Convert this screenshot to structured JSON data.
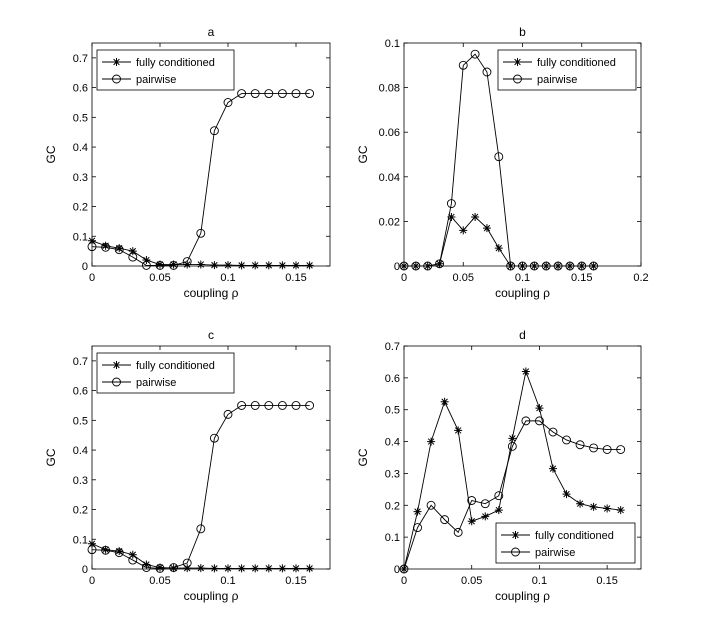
{
  "chart_data": [
    {
      "type": "line",
      "title": "a",
      "xlabel": "coupling ρ",
      "ylabel": "GC",
      "xlim": [
        0,
        0.175
      ],
      "ylim": [
        0,
        0.75
      ],
      "xticks": [
        0,
        0.05,
        0.1,
        0.15
      ],
      "xtick_labels": [
        "0",
        "0.05",
        "0.1",
        "0.15"
      ],
      "yticks": [
        0,
        0.1,
        0.2,
        0.3,
        0.4,
        0.5,
        0.6,
        0.7
      ],
      "ytick_labels": [
        "0",
        "0.1",
        "0.2",
        "0.3",
        "0.4",
        "0.5",
        "0.6",
        "0.7"
      ],
      "legend_position": "top-left",
      "x": [
        0,
        0.01,
        0.02,
        0.03,
        0.04,
        0.05,
        0.06,
        0.07,
        0.08,
        0.09,
        0.1,
        0.11,
        0.12,
        0.13,
        0.14,
        0.15,
        0.16
      ],
      "series": [
        {
          "name": "fully conditioned",
          "marker": "star",
          "values": [
            0.085,
            0.068,
            0.06,
            0.05,
            0.02,
            0.005,
            0.005,
            0.005,
            0.005,
            0.003,
            0.003,
            0.002,
            0.002,
            0.002,
            0.002,
            0.002,
            0.002
          ]
        },
        {
          "name": "pairwise",
          "marker": "circle",
          "values": [
            0.065,
            0.063,
            0.055,
            0.03,
            0.002,
            0.002,
            0.002,
            0.015,
            0.11,
            0.455,
            0.55,
            0.58,
            0.58,
            0.58,
            0.58,
            0.58,
            0.58
          ]
        }
      ]
    },
    {
      "type": "line",
      "title": "b",
      "xlabel": "coupling ρ",
      "ylabel": "GC",
      "xlim": [
        0,
        0.2
      ],
      "ylim": [
        0,
        0.1
      ],
      "xticks": [
        0,
        0.05,
        0.1,
        0.15,
        0.2
      ],
      "xtick_labels": [
        "0",
        "0.05",
        "0.1",
        "0.15",
        "0.2"
      ],
      "yticks": [
        0,
        0.02,
        0.04,
        0.06,
        0.08,
        0.1
      ],
      "ytick_labels": [
        "0",
        "0.02",
        "0.04",
        "0.06",
        "0.08",
        "0.1"
      ],
      "legend_position": "top-right",
      "x": [
        0,
        0.01,
        0.02,
        0.03,
        0.04,
        0.05,
        0.06,
        0.07,
        0.08,
        0.09,
        0.1,
        0.11,
        0.12,
        0.13,
        0.14,
        0.15,
        0.16
      ],
      "series": [
        {
          "name": "fully conditioned",
          "marker": "star",
          "values": [
            0,
            0,
            0,
            0.001,
            0.022,
            0.016,
            0.022,
            0.017,
            0.008,
            0,
            0,
            0,
            0,
            0,
            0,
            0,
            0
          ]
        },
        {
          "name": "pairwise",
          "marker": "circle",
          "values": [
            0,
            0,
            0,
            0.001,
            0.028,
            0.09,
            0.095,
            0.087,
            0.049,
            0,
            0,
            0,
            0,
            0,
            0,
            0,
            0
          ]
        }
      ]
    },
    {
      "type": "line",
      "title": "c",
      "xlabel": "coupling ρ",
      "ylabel": "GC",
      "xlim": [
        0,
        0.175
      ],
      "ylim": [
        0,
        0.75
      ],
      "xticks": [
        0,
        0.05,
        0.1,
        0.15
      ],
      "xtick_labels": [
        "0",
        "0.05",
        "0.1",
        "0.15"
      ],
      "yticks": [
        0,
        0.1,
        0.2,
        0.3,
        0.4,
        0.5,
        0.6,
        0.7
      ],
      "ytick_labels": [
        "0",
        "0.1",
        "0.2",
        "0.3",
        "0.4",
        "0.5",
        "0.6",
        "0.7"
      ],
      "legend_position": "top-left",
      "x": [
        0,
        0.01,
        0.02,
        0.03,
        0.04,
        0.05,
        0.06,
        0.07,
        0.08,
        0.09,
        0.1,
        0.11,
        0.12,
        0.13,
        0.14,
        0.15,
        0.16
      ],
      "series": [
        {
          "name": "fully conditioned",
          "marker": "star",
          "values": [
            0.085,
            0.065,
            0.06,
            0.048,
            0.015,
            0.005,
            0.003,
            0.003,
            0.003,
            0.002,
            0.002,
            0.002,
            0.002,
            0.002,
            0.002,
            0.002,
            0.002
          ]
        },
        {
          "name": "pairwise",
          "marker": "circle",
          "values": [
            0.065,
            0.063,
            0.055,
            0.03,
            0.005,
            0.002,
            0.005,
            0.02,
            0.135,
            0.44,
            0.52,
            0.55,
            0.55,
            0.55,
            0.55,
            0.55,
            0.55
          ]
        }
      ]
    },
    {
      "type": "line",
      "title": "d",
      "xlabel": "coupling ρ",
      "ylabel": "GC",
      "xlim": [
        0,
        0.175
      ],
      "ylim": [
        0,
        0.7
      ],
      "xticks": [
        0,
        0.05,
        0.1,
        0.15
      ],
      "xtick_labels": [
        "0",
        "0.05",
        "0.1",
        "0.15"
      ],
      "yticks": [
        0,
        0.1,
        0.2,
        0.3,
        0.4,
        0.5,
        0.6,
        0.7
      ],
      "ytick_labels": [
        "0",
        "0.1",
        "0.2",
        "0.3",
        "0.4",
        "0.5",
        "0.6",
        "0.7"
      ],
      "legend_position": "bottom-right",
      "x": [
        0,
        0.01,
        0.02,
        0.03,
        0.04,
        0.05,
        0.06,
        0.07,
        0.08,
        0.09,
        0.1,
        0.11,
        0.12,
        0.13,
        0.14,
        0.15,
        0.16
      ],
      "series": [
        {
          "name": "fully conditioned",
          "marker": "star",
          "values": [
            0,
            0.18,
            0.4,
            0.525,
            0.435,
            0.15,
            0.165,
            0.185,
            0.41,
            0.62,
            0.505,
            0.315,
            0.235,
            0.205,
            0.195,
            0.19,
            0.185
          ]
        },
        {
          "name": "pairwise",
          "marker": "circle",
          "values": [
            0,
            0.13,
            0.2,
            0.155,
            0.115,
            0.215,
            0.205,
            0.23,
            0.385,
            0.465,
            0.465,
            0.43,
            0.405,
            0.39,
            0.38,
            0.375,
            0.375
          ]
        }
      ]
    }
  ]
}
